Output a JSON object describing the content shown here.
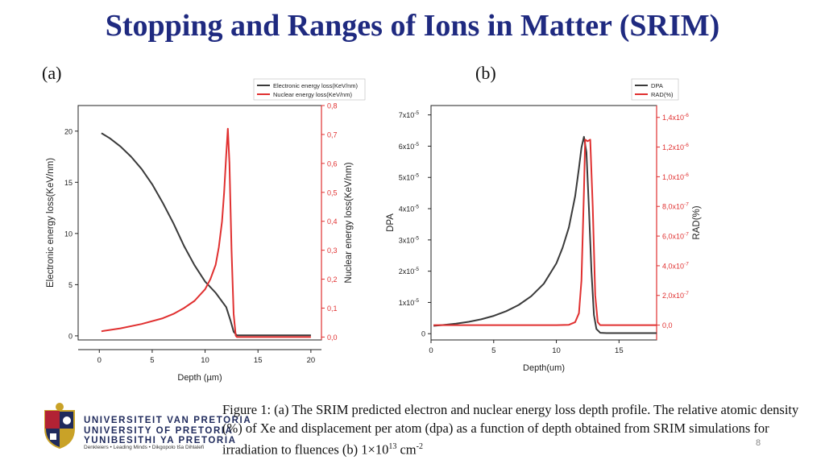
{
  "slide": {
    "title": "Stopping and Ranges of Ions in Matter (SRIM)",
    "label_a": "(a)",
    "label_b": "(b)",
    "caption_text": "Figure 1: (a) The SRIM predicted electron and nuclear energy loss depth profile. The relative atomic density (%) of Xe and displacement per atom (dpa) as a function of depth obtained from SRIM simulations for irradiation to fluences (b) 1×10",
    "caption_exp": "13",
    "caption_tail": " cm",
    "caption_unit_exp": "-2",
    "slide_number": "8"
  },
  "logo": {
    "line1": "UNIVERSITEIT VAN PRETORIA",
    "line2": "UNIVERSITY OF PRETORIA",
    "line3": "YUNIBESITHI YA PRETORIA",
    "motto": "Denkleiers • Leading Minds • Dikgopolo tša Dihlalefi",
    "colors": {
      "blue": "#1f2a5c",
      "red": "#b22234",
      "gold": "#c9a227"
    }
  },
  "chart_data": [
    {
      "id": "a",
      "type": "line",
      "xlabel": "Depth (µm)",
      "ylabel_left": "Electronic energy loss(KeV/nm)",
      "ylabel_right": "Nuclear energy loss(KeV/nm)",
      "xlim": [
        -2,
        21
      ],
      "ylim_left": [
        -0.4,
        22.5
      ],
      "ylim_right": [
        -0.01,
        0.8
      ],
      "xticks": [
        0,
        5,
        10,
        15,
        20
      ],
      "xtick_labels": [
        "0",
        "5",
        "10",
        "15",
        "20"
      ],
      "yticks_left": [
        0,
        5,
        10,
        15,
        20
      ],
      "ytick_labels_left": [
        "0",
        "5",
        "10",
        "15",
        "20"
      ],
      "yticks_right": [
        0.0,
        0.1,
        0.2,
        0.3,
        0.4,
        0.5,
        0.6,
        0.7,
        0.8
      ],
      "ytick_labels_right": [
        "0,0",
        "0,1",
        "0,2",
        "0,3",
        "0,4",
        "0,5",
        "0,6",
        "0,7",
        "0,8"
      ],
      "legend": [
        "Electronic energy loss(KeV/nm)",
        "Nuclear energy loss(KeV/nm)"
      ],
      "legend_position": "top-right",
      "series": [
        {
          "name": "Electronic energy loss(KeV/nm)",
          "axis": "left",
          "color": "#3a3a3a",
          "x": [
            0.2,
            1,
            2,
            3,
            4,
            5,
            6,
            7,
            8,
            9,
            10,
            11,
            12,
            12.4,
            12.7,
            13,
            14,
            16,
            18,
            20
          ],
          "y": [
            19.8,
            19.3,
            18.5,
            17.5,
            16.3,
            14.8,
            13.0,
            11.0,
            8.8,
            6.9,
            5.3,
            4.2,
            2.8,
            1.5,
            0.4,
            0.05,
            0.05,
            0.05,
            0.05,
            0.05
          ]
        },
        {
          "name": "Nuclear energy loss(KeV/nm)",
          "axis": "right",
          "color": "#e03030",
          "x": [
            0.2,
            2,
            4,
            6,
            7,
            8,
            9,
            10,
            10.5,
            11,
            11.3,
            11.6,
            11.8,
            12.0,
            12.15,
            12.3,
            12.5,
            12.7,
            12.9,
            13.0,
            14,
            16,
            18,
            20
          ],
          "y": [
            0.02,
            0.03,
            0.045,
            0.065,
            0.08,
            0.1,
            0.125,
            0.165,
            0.2,
            0.25,
            0.31,
            0.4,
            0.5,
            0.63,
            0.72,
            0.6,
            0.3,
            0.08,
            0.005,
            0.0,
            0.0,
            0.0,
            0.0,
            0.0
          ]
        }
      ]
    },
    {
      "id": "b",
      "type": "line",
      "xlabel": "Depth(um)",
      "ylabel_left": "DPA",
      "ylabel_right": "RAD(%)",
      "xlim": [
        0,
        18
      ],
      "ylim_left": [
        -0.2,
        7.3
      ],
      "ylim_right": [
        -1e-07,
        1.48e-06
      ],
      "xticks": [
        0,
        5,
        10,
        15
      ],
      "xtick_labels": [
        "0",
        "5",
        "10",
        "15"
      ],
      "yticks_left": [
        0,
        1,
        2,
        3,
        4,
        5,
        6,
        7
      ],
      "ytick_labels_left": [
        "0",
        "1x10",
        "2x10",
        "3x10",
        "4x10",
        "5x10",
        "6x10",
        "7x10"
      ],
      "ytick_exp_left": [
        "",
        "-5",
        "-5",
        "-5",
        "-5",
        "-5",
        "-5",
        "-5"
      ],
      "yticks_right": [
        0,
        2e-07,
        4e-07,
        6e-07,
        8e-07,
        1e-06,
        1.2e-06,
        1.4e-06
      ],
      "ytick_labels_right": [
        "0,0",
        "2,0x10",
        "4,0x10",
        "6,0x10",
        "8,0x10",
        "1,0x10",
        "1,2x10",
        "1,4x10"
      ],
      "ytick_exp_right": [
        "",
        "-7",
        "-7",
        "-7",
        "-7",
        "-6",
        "-6",
        "-6"
      ],
      "y_unit_note": "left values in units of 1x10^-5 DPA",
      "legend": [
        "DPA",
        "RAD(%)"
      ],
      "legend_position": "top-right",
      "series": [
        {
          "name": "DPA",
          "axis": "left",
          "color": "#3a3a3a",
          "x": [
            0.2,
            1,
            2,
            3,
            4,
            5,
            6,
            7,
            8,
            9,
            10,
            10.5,
            11,
            11.5,
            11.8,
            12.0,
            12.2,
            12.4,
            12.6,
            12.8,
            13.0,
            13.2,
            13.5,
            14,
            16,
            18
          ],
          "y": [
            0.25,
            0.28,
            0.32,
            0.38,
            0.46,
            0.57,
            0.72,
            0.92,
            1.2,
            1.6,
            2.25,
            2.75,
            3.4,
            4.4,
            5.3,
            5.95,
            6.3,
            5.8,
            4.0,
            2.0,
            0.6,
            0.15,
            0.03,
            0.02,
            0.02,
            0.02
          ]
        },
        {
          "name": "RAD(%)",
          "axis": "right",
          "color": "#e03030",
          "x": [
            0.2,
            5,
            10,
            11,
            11.5,
            11.8,
            12.0,
            12.2,
            12.3,
            12.5,
            12.7,
            12.9,
            13.1,
            13.3,
            13.5,
            14,
            16,
            18
          ],
          "y": [
            0,
            0,
            0,
            2e-09,
            2e-08,
            8e-08,
            3e-07,
            9e-07,
            1.25e-06,
            1.24e-06,
            1.25e-06,
            8e-07,
            2e-07,
            2e-08,
            0,
            0,
            0,
            0
          ]
        }
      ]
    }
  ]
}
